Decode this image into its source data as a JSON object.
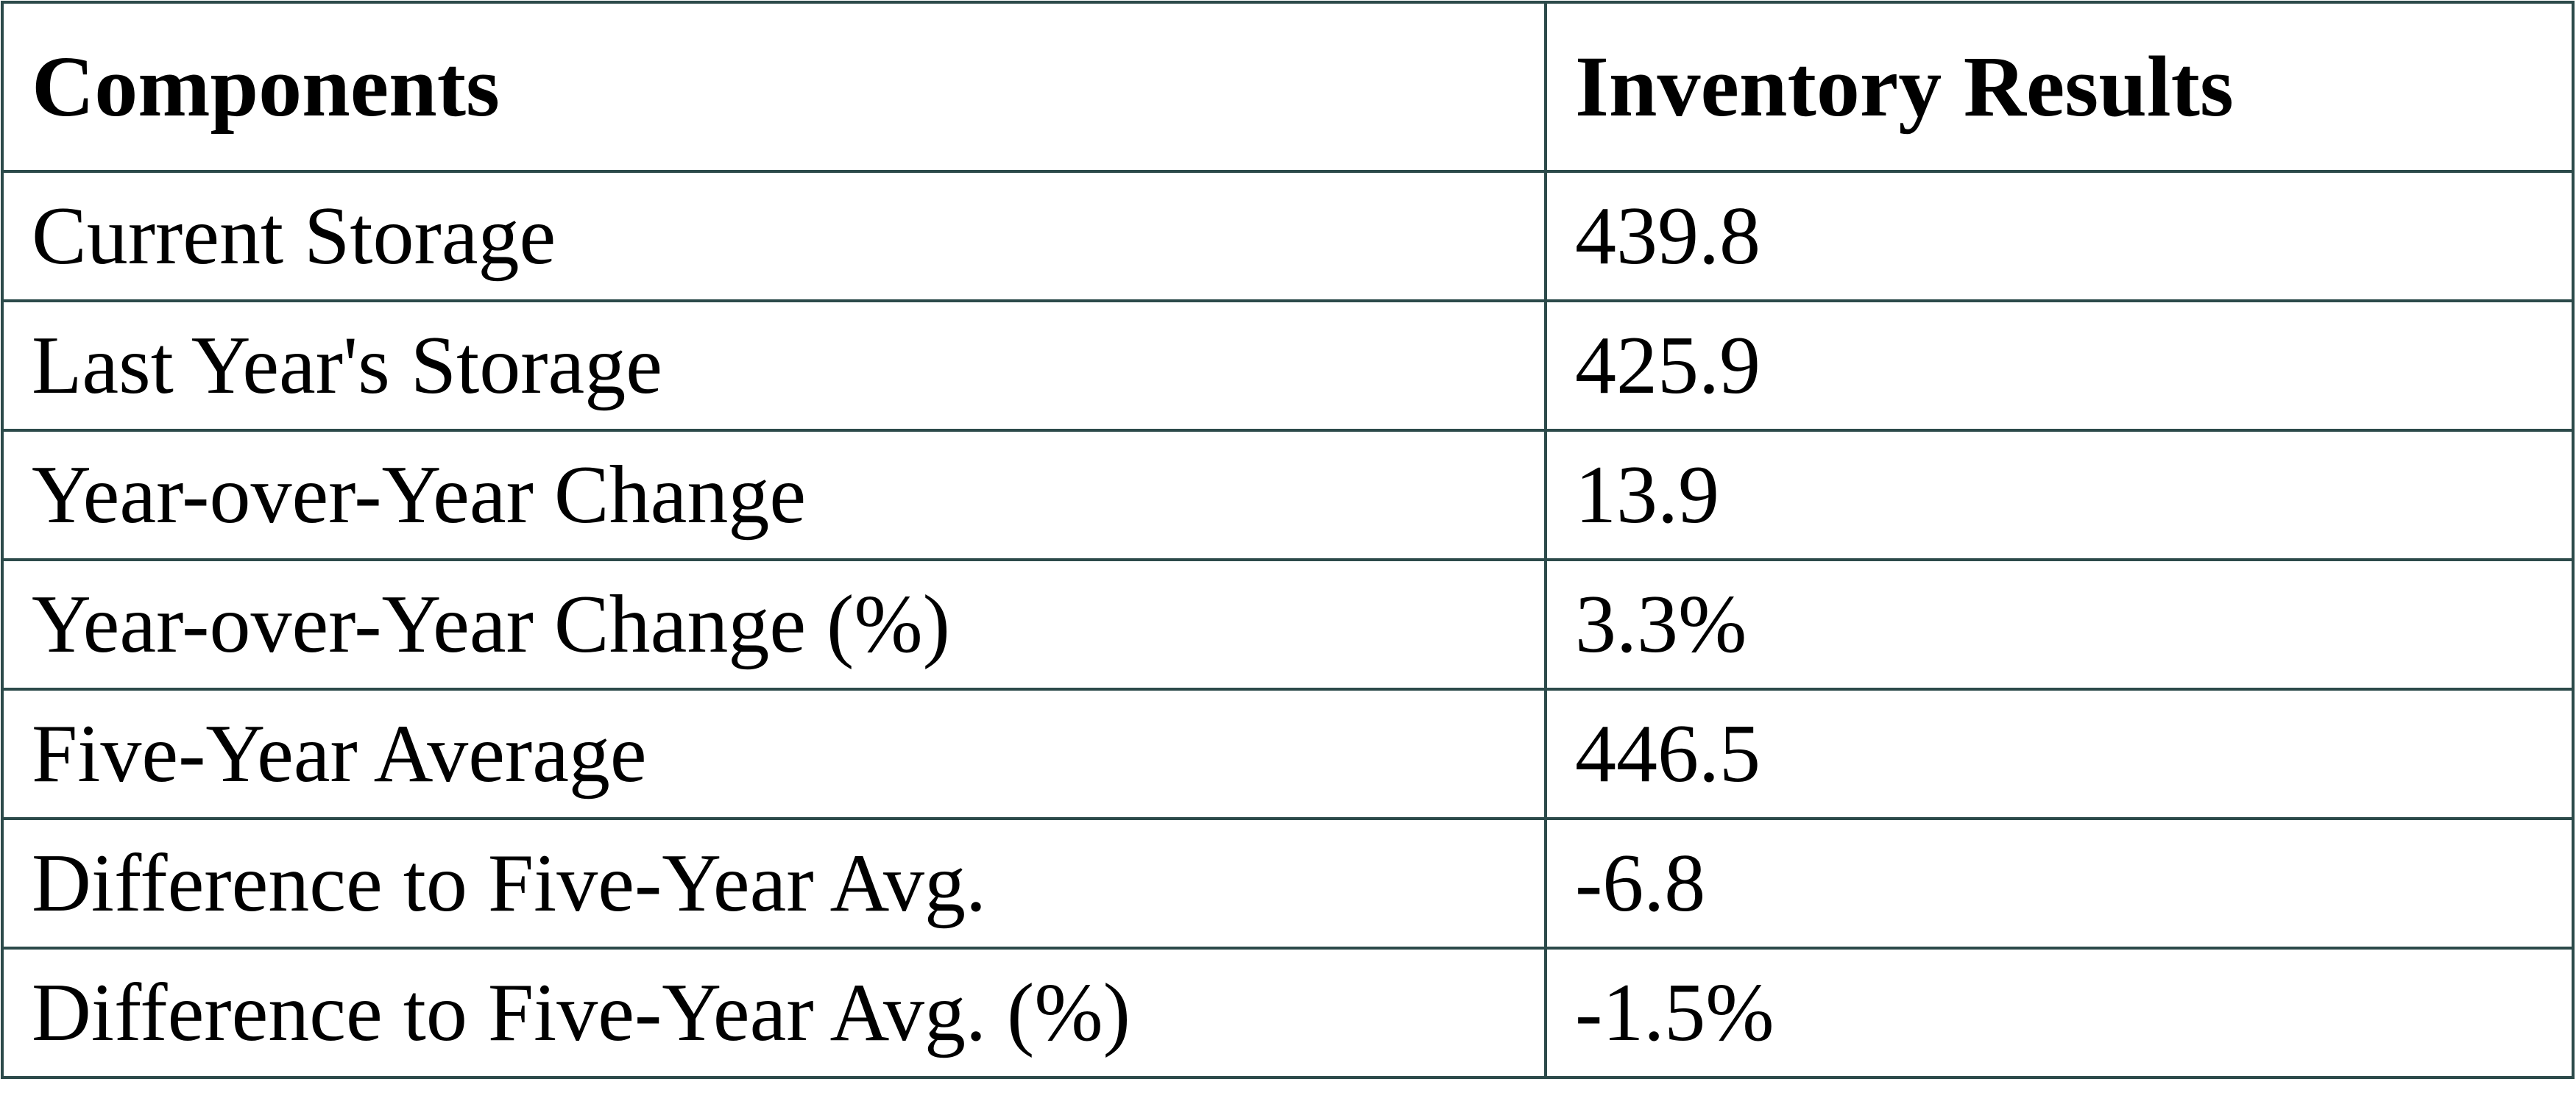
{
  "table": {
    "header": [
      "Components",
      "Inventory Results"
    ],
    "rows": [
      [
        "Current Storage",
        "439.8"
      ],
      [
        "Last Year's Storage",
        "425.9"
      ],
      [
        "Year-over-Year Change",
        "13.9"
      ],
      [
        "Year-over-Year Change (%)",
        "3.3%"
      ],
      [
        "Five-Year Average",
        "446.5"
      ],
      [
        "Difference to Five-Year Avg.",
        "-6.8"
      ],
      [
        "Difference to Five-Year Avg. (%)",
        "-1.5%"
      ]
    ]
  }
}
